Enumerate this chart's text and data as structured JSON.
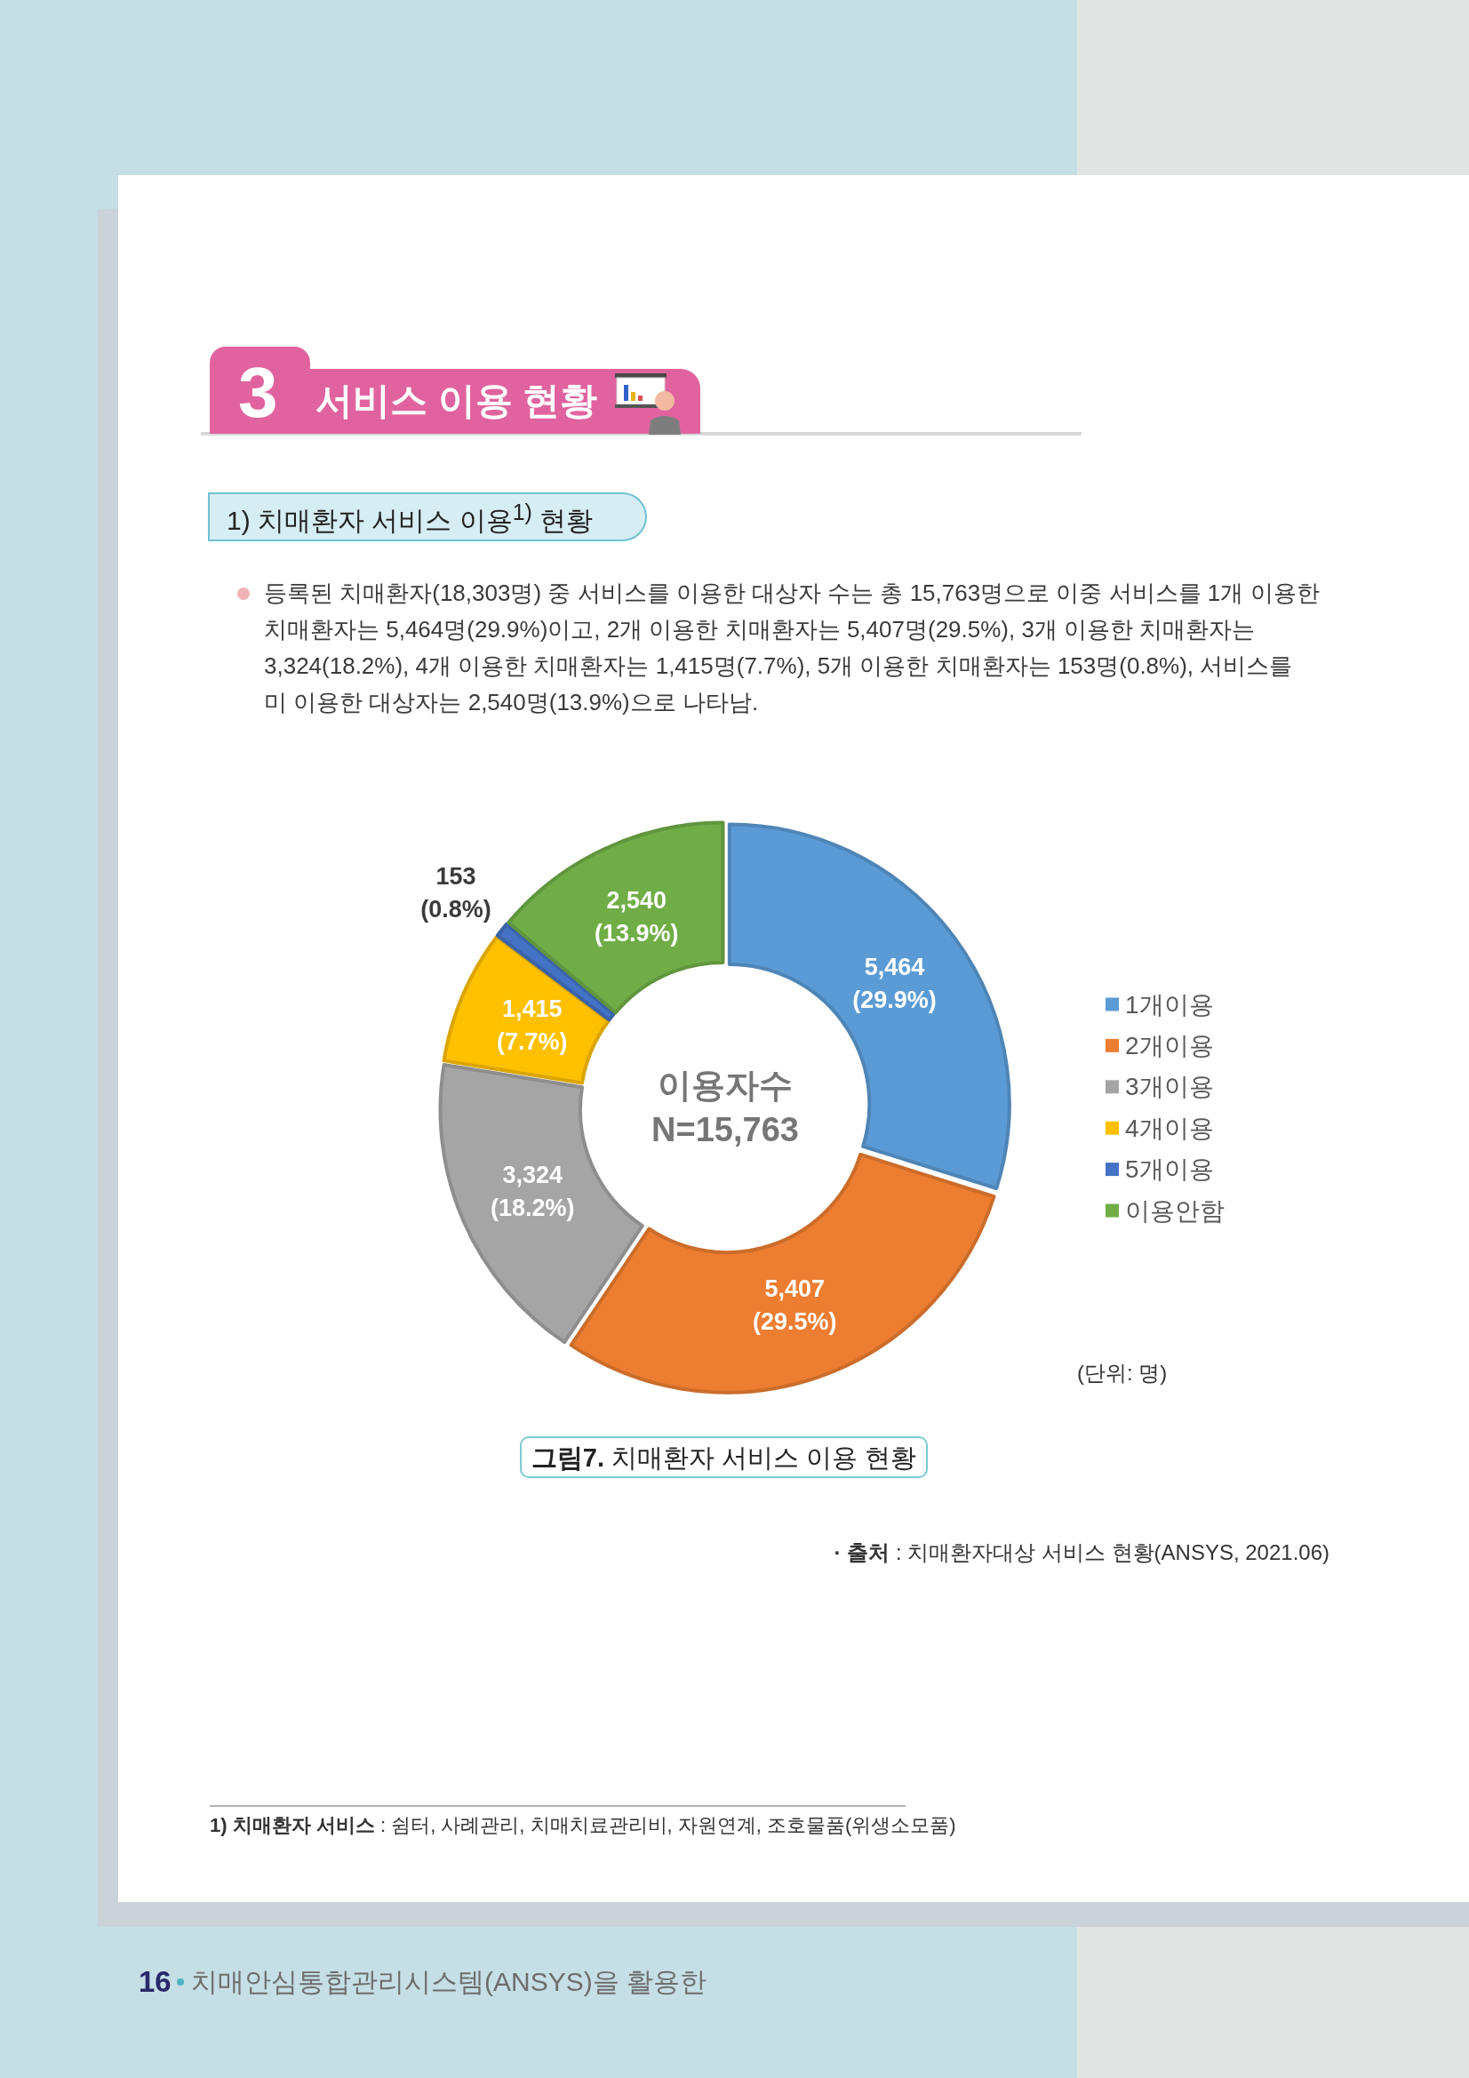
{
  "chart_data": {
    "type": "donut",
    "title": "그림7. 치매환자 서비스 이용 현황",
    "subtitle": "1) 치매환자 서비스 이용$^{1)}$ 현황",
    "categories": [
      "1개이용",
      "2개이용",
      "3개이용",
      "4개이용",
      "5개이용",
      "이용안함"
    ],
    "values": [
      5464,
      5407,
      3324,
      1415,
      153,
      2540
    ],
    "colors": [
      "#5b9bd5",
      "#ed7d31",
      "#a5a5a5",
      "#ffc000",
      "#4472c4",
      "#70ad47"
    ],
    "value_labels": [
      "5,464\n(29.9%)",
      "5,407\n(29.5%)",
      "3,324\n(18.2%)",
      "1,415\n(7.7%)",
      "153\n(0.8%)",
      "2,540\n(13.9%)"
    ],
    "legend": "right",
    "annotations": [
      "3",
      "서비스 이용 현황",
      "등록된 치매환자(18,303명) 중 서비스를 이용한 대상자 수는 총 15,763명으로 이중 서비스를 1개 이용한\n치매환자는 5,464명(29.9%)이고, 2개 이용한 치매환자는 5,407명(29.5%), 3개 이용한 치매환자는\n3,324(18.2%), 4개 이용한 치매환자는 1,415명(7.7%), 5개 이용한 치매환자는 153명(0.8%), 서비스를\n미 이용한 대상자는 2,540명(13.9%)으로 나타남.",
      "이용자수\nN=15,763",
      "(단위: 명)",
      "· 출처 : 치매환자대상 서비스 현황(ANSYS, 2021.06)",
      "1) 치매환자 서비스 : 쉼터, 사례관리, 치매치료관리비, 자원연계, 조호물품(위생소모품)",
      "16",
      "치매안심통합관리시스템(ANSYS)을 활용한"
    ]
  }
}
